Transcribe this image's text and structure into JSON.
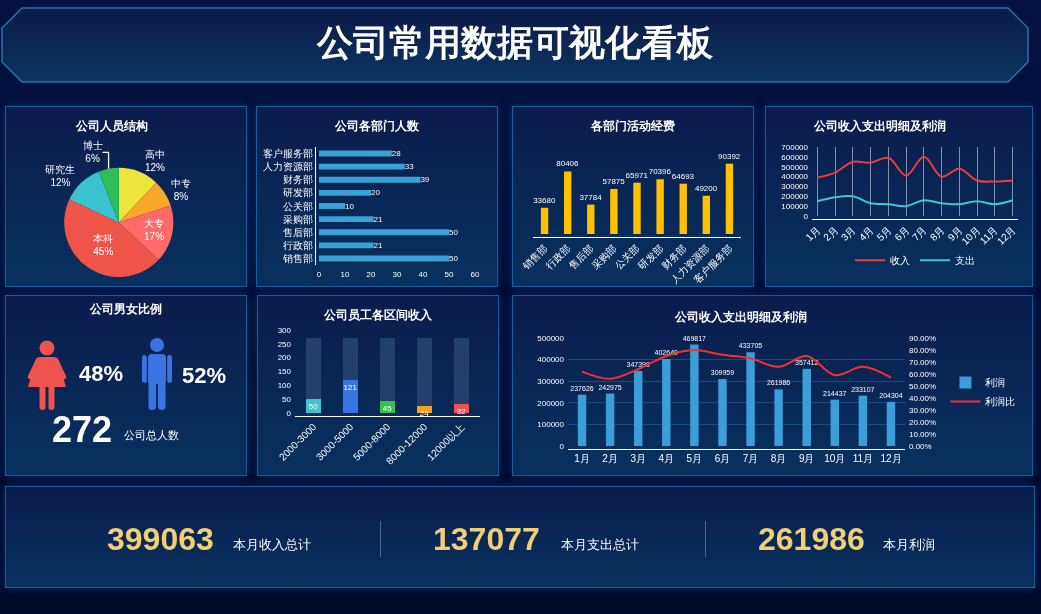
{
  "chart_data": [
    {
      "type": "other",
      "title": "公司常用数据可视化看板"
    },
    {
      "type": "pie",
      "title": "公司人员结构",
      "categories": [
        "高中",
        "中专",
        "大专",
        "本科",
        "研究生",
        "博士"
      ],
      "values": [
        12,
        8,
        17,
        45,
        12,
        6
      ],
      "value_labels": [
        "12%",
        "8%",
        "17%",
        "45%",
        "12%",
        "6%"
      ],
      "colors": [
        "#ede43c",
        "#f9a62a",
        "#fe6a6a",
        "#ef5449",
        "#3bc3cf",
        "#2dbe58"
      ]
    },
    {
      "type": "bar",
      "orientation": "horizontal",
      "title": "公司各部门人数",
      "categories": [
        "客户服务部",
        "人力资源部",
        "财务部",
        "研发部",
        "公关部",
        "采购部",
        "售后部",
        "行政部",
        "销售部"
      ],
      "values": [
        28,
        33,
        39,
        20,
        10,
        21,
        50,
        21,
        50
      ],
      "color": "#3aa1d6",
      "xlim": [
        0,
        60
      ],
      "xticks": [
        0,
        10,
        20,
        30,
        40,
        50,
        60
      ],
      "data_labels": true
    },
    {
      "type": "bar",
      "title": "各部门活动经费",
      "categories": [
        "销售部",
        "行政部",
        "售后部",
        "采购部",
        "公关部",
        "研发部",
        "财务部",
        "人力资源部",
        "客户服务部"
      ],
      "values": [
        33680,
        80406,
        37784,
        57875,
        65971,
        70396,
        64693,
        49200,
        90392
      ],
      "color": "#ffc000",
      "data_labels": true,
      "tick_labels": "x"
    },
    {
      "type": "line",
      "title": "公司收入支出明细及利润",
      "categories": [
        "1月",
        "2月",
        "3月",
        "4月",
        "5月",
        "6月",
        "7月",
        "8月",
        "9月",
        "10月",
        "11月",
        "12月"
      ],
      "series": [
        {
          "name": "收入",
          "color": "#f23b3b",
          "values": [
            390000,
            440000,
            550000,
            540000,
            590000,
            410000,
            600000,
            400000,
            480000,
            360000,
            350000,
            360000
          ]
        },
        {
          "name": "支出",
          "color": "#3cc8d0",
          "values": [
            150000,
            190000,
            200000,
            130000,
            120000,
            100000,
            160000,
            130000,
            120000,
            150000,
            120000,
            160000
          ]
        }
      ],
      "ylim": [
        0,
        700000
      ],
      "yticks": [
        0,
        100000,
        200000,
        300000,
        400000,
        500000,
        600000,
        700000
      ],
      "grid": "x",
      "legend": "bottom"
    },
    {
      "type": "other",
      "title": "公司男女比例",
      "annotations": [
        "48%",
        "52%",
        "272",
        "公司总人数"
      ]
    },
    {
      "type": "bar",
      "title": "公司员工各区间收入",
      "categories": [
        "2000-3000",
        "3000-5000",
        "5000-8000",
        "8000-12000",
        "12000以上"
      ],
      "series": [
        {
          "colors": [
            "#3ec6cf",
            "#3a74e0",
            "#35c14e",
            "#f7a21b",
            "#ef5350"
          ],
          "values": [
            50,
            121,
            45,
            24,
            32
          ],
          "value_labels": [
            "50",
            "121",
            "45",
            "24",
            "32"
          ]
        },
        {
          "color": "#22406b",
          "values": [
            220,
            149,
            225,
            246,
            238
          ]
        }
      ],
      "stacked": true,
      "ylim": [
        0,
        300
      ],
      "yticks": [
        0,
        50,
        100,
        150,
        200,
        250,
        300
      ]
    },
    {
      "type": "bar",
      "title": "公司收入支出明细及利润",
      "categories": [
        "1月",
        "2月",
        "3月",
        "4月",
        "5月",
        "6月",
        "7月",
        "8月",
        "9月",
        "10月",
        "11月",
        "12月"
      ],
      "series": [
        {
          "name": "利润",
          "color": "#3b9ed8",
          "values": [
            237626,
            242975,
            347399,
            402640,
            469817,
            309959,
            433705,
            261986,
            357412,
            214437,
            233107,
            204304
          ],
          "value_labels": [
            "237626",
            "242975",
            "347399",
            "402640",
            "469817",
            "309959",
            "433705",
            "261986",
            "357412",
            "214437",
            "233107",
            "204304"
          ]
        },
        {
          "name": "利润比",
          "type": "line",
          "axis": "y2",
          "color": "#f23030",
          "values": [
            62,
            56,
            64,
            75,
            80,
            76,
            73,
            66,
            75,
            59,
            66,
            57
          ]
        }
      ],
      "ylim": [
        0,
        500000
      ],
      "yticks": [
        0,
        100000,
        200000,
        300000,
        400000,
        500000
      ],
      "y2lim": [
        0,
        90
      ],
      "y2ticks": [
        {
          "value": 0,
          "label": "0.00%"
        },
        {
          "value": 10,
          "label": "10.00%"
        },
        {
          "value": 20,
          "label": "20.00%"
        },
        {
          "value": 30,
          "label": "30.00%"
        },
        {
          "value": 40,
          "label": "40.00%"
        },
        {
          "value": 50,
          "label": "50.00%"
        },
        {
          "value": 60,
          "label": "60.00%"
        },
        {
          "value": 70,
          "label": "70.00%"
        },
        {
          "value": 80,
          "label": "80.00%"
        },
        {
          "value": 90,
          "label": "90.00%"
        }
      ],
      "grid": "y",
      "legend": "right"
    },
    {
      "type": "other",
      "annotations": [
        "399063",
        "本月收入总计",
        "137077",
        "本月支出总计",
        "261986",
        "本月利润"
      ]
    }
  ]
}
